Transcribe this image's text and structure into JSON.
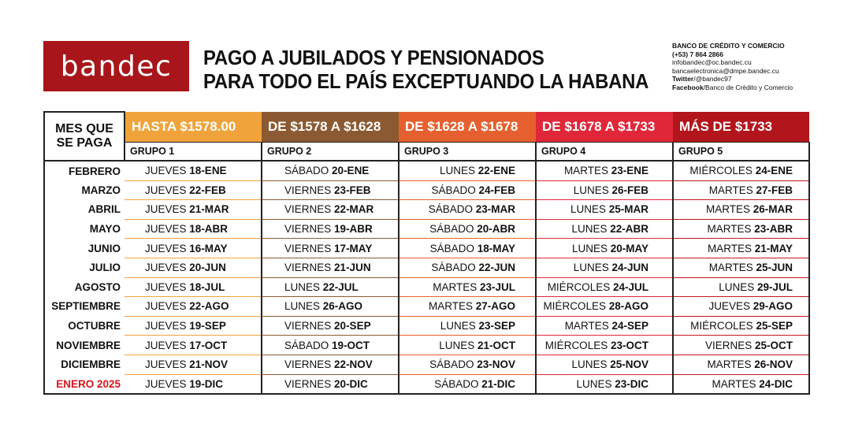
{
  "brand": {
    "logo_text": "bandec",
    "logo_color": "#a8161b"
  },
  "title": {
    "line1": "PAGO A JUBILADOS Y PENSIONADOS",
    "line2": "PARA TODO EL PAÍS EXCEPTUANDO LA HABANA"
  },
  "contact": {
    "bank": "BANCO DE CRÉDITO Y COMERCIO",
    "phone": "(+53) 7 864 2866",
    "email1": "infobandec@oc.bandec.cu",
    "email2": "bancaelectronica@dmpe.bandec.cu",
    "twitter_label": "Twitter",
    "twitter": "/@bandec97",
    "facebook_label": "Facebook",
    "facebook": "/Banco de Crédito y Comercio"
  },
  "table": {
    "month_header_line1": "MES QUE",
    "month_header_line2": "SE PAGA",
    "columns": [
      {
        "range": "HASTA $1578.00",
        "group": "GRUPO 1",
        "color": "#f0a33a",
        "underline": "#f0a33a"
      },
      {
        "range": "DE $1578 A $1628",
        "group": "GRUPO 2",
        "color": "#8c5a32",
        "underline": "#8c5a32"
      },
      {
        "range": "DE $1628 A $1678",
        "group": "GRUPO 3",
        "color": "#e5602e",
        "underline": "#e5602e"
      },
      {
        "range": "DE $1678 A $1733",
        "group": "GRUPO 4",
        "color": "#e0273a",
        "underline": "#e0273a"
      },
      {
        "range": "MÁS DE $1733",
        "group": "GRUPO 5",
        "color": "#b3151c",
        "underline": "#c2161e"
      }
    ],
    "rows": [
      {
        "month": "FEBRERO",
        "cells": [
          [
            "JUEVES",
            "18-ENE"
          ],
          [
            "SÁBADO",
            "20-ENE"
          ],
          [
            "LUNES",
            "22-ENE"
          ],
          [
            "MARTES",
            "23-ENE"
          ],
          [
            "MIÉRCOLES",
            "24-ENE"
          ]
        ]
      },
      {
        "month": "MARZO",
        "cells": [
          [
            "JUEVES",
            "22-FEB"
          ],
          [
            "VIERNES",
            "23-FEB"
          ],
          [
            "SÁBADO",
            "24-FEB"
          ],
          [
            "LUNES",
            "26-FEB"
          ],
          [
            "MARTES",
            "27-FEB"
          ]
        ]
      },
      {
        "month": "ABRIL",
        "cells": [
          [
            "JUEVES",
            "21-MAR"
          ],
          [
            "VIERNES",
            "22-MAR"
          ],
          [
            "SÁBADO",
            "23-MAR"
          ],
          [
            "LUNES",
            "25-MAR"
          ],
          [
            "MARTES",
            "26-MAR"
          ]
        ]
      },
      {
        "month": "MAYO",
        "cells": [
          [
            "JUEVES",
            "18-ABR"
          ],
          [
            "VIERNES",
            "19-ABR"
          ],
          [
            "SÁBADO",
            "20-ABR"
          ],
          [
            "LUNES",
            "22-ABR"
          ],
          [
            "MARTES",
            "23-ABR"
          ]
        ]
      },
      {
        "month": "JUNIO",
        "cells": [
          [
            "JUEVES",
            "16-MAY"
          ],
          [
            "VIERNES",
            "17-MAY"
          ],
          [
            "SÁBADO",
            "18-MAY"
          ],
          [
            "LUNES",
            "20-MAY"
          ],
          [
            "MARTES",
            "21-MAY"
          ]
        ]
      },
      {
        "month": "JULIO",
        "cells": [
          [
            "JUEVES",
            "20-JUN"
          ],
          [
            "VIERNES",
            "21-JUN"
          ],
          [
            "SÁBADO",
            "22-JUN"
          ],
          [
            "LUNES",
            "24-JUN"
          ],
          [
            "MARTES",
            "25-JUN"
          ]
        ]
      },
      {
        "month": "AGOSTO",
        "cells": [
          [
            "JUEVES",
            "18-JUL"
          ],
          [
            "LUNES",
            "22-JUL"
          ],
          [
            "MARTES",
            "23-JUL"
          ],
          [
            "MIÉRCOLES",
            "24-JUL"
          ],
          [
            "LUNES",
            "29-JUL"
          ]
        ]
      },
      {
        "month": "SEPTIEMBRE",
        "cells": [
          [
            "JUEVES",
            "22-AGO"
          ],
          [
            "LUNES",
            "26-AGO"
          ],
          [
            "MARTES",
            "27-AGO"
          ],
          [
            "MIÉRCOLES",
            "28-AGO"
          ],
          [
            "JUEVES",
            "29-AGO"
          ]
        ]
      },
      {
        "month": "OCTUBRE",
        "cells": [
          [
            "JUEVES",
            "19-SEP"
          ],
          [
            "VIERNES",
            "20-SEP"
          ],
          [
            "LUNES",
            "23-SEP"
          ],
          [
            "MARTES",
            "24-SEP"
          ],
          [
            "MIÉRCOLES",
            "25-SEP"
          ]
        ]
      },
      {
        "month": "NOVIEMBRE",
        "cells": [
          [
            "JUEVES",
            "17-OCT"
          ],
          [
            "SÁBADO",
            "19-OCT"
          ],
          [
            "LUNES",
            "21-OCT"
          ],
          [
            "MIÉRCOLES",
            "23-OCT"
          ],
          [
            "VIERNES",
            "25-OCT"
          ]
        ]
      },
      {
        "month": "DICIEMBRE",
        "cells": [
          [
            "JUEVES",
            "21-NOV"
          ],
          [
            "VIERNES",
            "22-NOV"
          ],
          [
            "SÁBADO",
            "23-NOV"
          ],
          [
            "LUNES",
            "25-NOV"
          ],
          [
            "MARTES",
            "26-NOV"
          ]
        ]
      },
      {
        "month": "ENERO 2025",
        "highlight_color": "#d4151b",
        "cells": [
          [
            "JUEVES",
            "19-DIC"
          ],
          [
            "VIERNES",
            "20-DIC"
          ],
          [
            "SÁBADO",
            "21-DIC"
          ],
          [
            "LUNES",
            "23-DIC"
          ],
          [
            "MARTES",
            "24-DIC"
          ]
        ]
      }
    ]
  }
}
